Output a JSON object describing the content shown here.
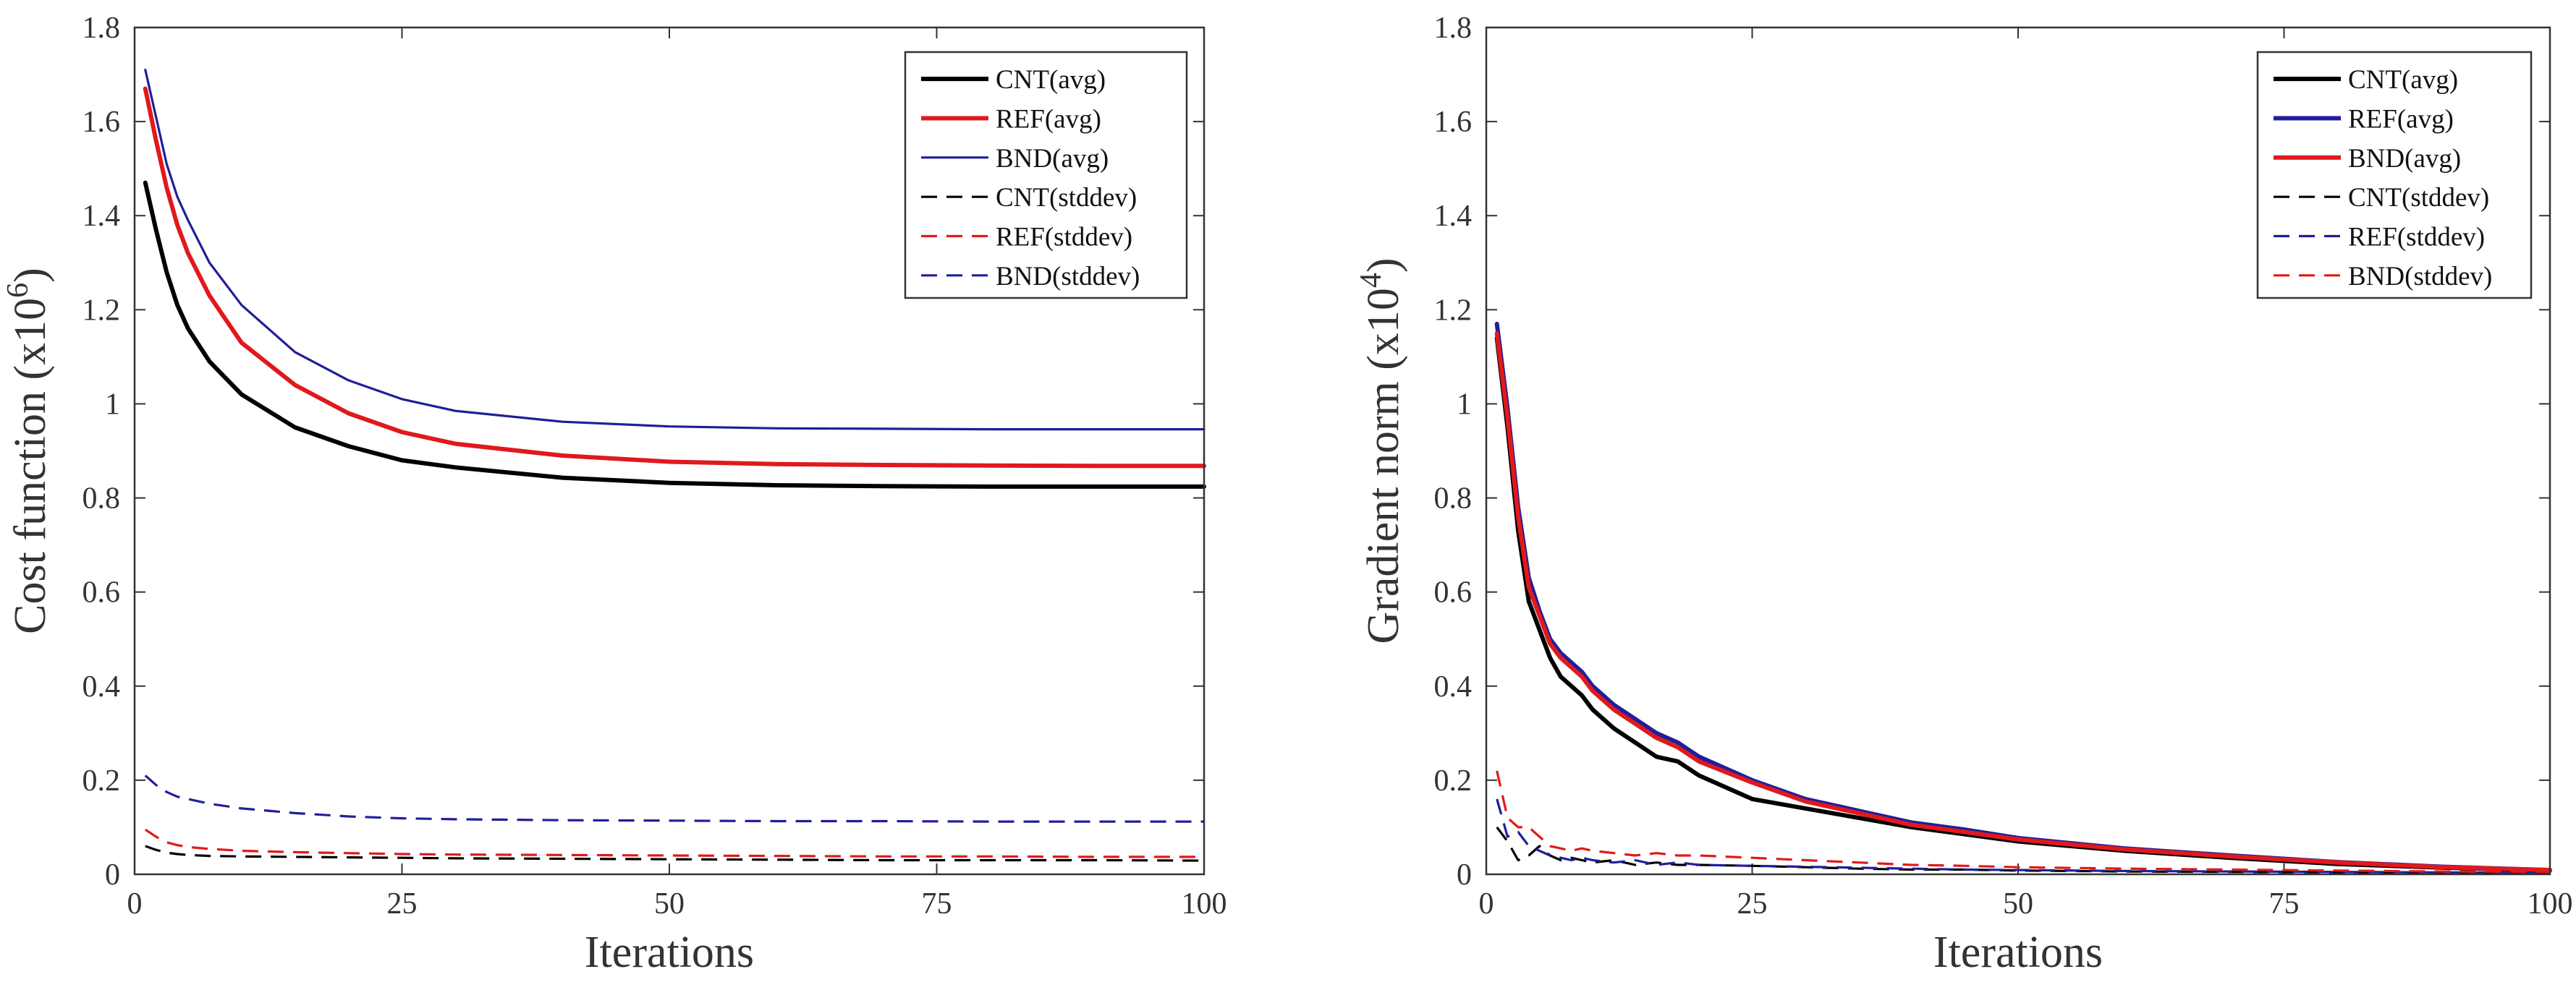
{
  "chart_data": [
    {
      "type": "line",
      "xlabel": "Iterations",
      "ylabel": "Cost function (x10",
      "ylabel_sup": "6",
      "ylabel_close": ")",
      "xlim": [
        0,
        100
      ],
      "ylim": [
        0,
        1.8
      ],
      "xticks": [
        0,
        25,
        50,
        75,
        100
      ],
      "xtick_labels": [
        "0",
        "25",
        "50",
        "75",
        "100"
      ],
      "yticks": [
        0,
        0.2,
        0.4,
        0.6,
        0.8,
        1.0,
        1.2,
        1.4,
        1.6,
        1.8
      ],
      "ytick_labels": [
        "0",
        "0.2",
        "0.4",
        "0.6",
        "0.8",
        "1",
        "1.2",
        "1.4",
        "1.6",
        "1.8"
      ],
      "legend_position": "top-right",
      "x": [
        1,
        2,
        3,
        4,
        5,
        7,
        10,
        15,
        20,
        25,
        30,
        40,
        50,
        60,
        70,
        80,
        90,
        100
      ],
      "series": [
        {
          "name": "CNT(avg)",
          "color": "#000000",
          "style": "solid",
          "weight": "thick",
          "values": [
            1.47,
            1.37,
            1.28,
            1.21,
            1.16,
            1.09,
            1.02,
            0.95,
            0.91,
            0.88,
            0.865,
            0.843,
            0.832,
            0.827,
            0.825,
            0.824,
            0.824,
            0.824
          ]
        },
        {
          "name": "REF(avg)",
          "color": "#e0191d",
          "style": "solid",
          "weight": "thick",
          "values": [
            1.67,
            1.56,
            1.46,
            1.38,
            1.32,
            1.23,
            1.13,
            1.04,
            0.98,
            0.94,
            0.915,
            0.89,
            0.877,
            0.872,
            0.87,
            0.869,
            0.868,
            0.868
          ]
        },
        {
          "name": "BND(avg)",
          "color": "#1f1f9a",
          "style": "solid",
          "weight": "thin",
          "values": [
            1.71,
            1.61,
            1.51,
            1.44,
            1.39,
            1.3,
            1.21,
            1.11,
            1.05,
            1.01,
            0.985,
            0.962,
            0.952,
            0.948,
            0.947,
            0.946,
            0.946,
            0.946
          ]
        },
        {
          "name": "CNT(stddev)",
          "color": "#000000",
          "style": "dashed",
          "weight": "thin",
          "values": [
            0.06,
            0.052,
            0.046,
            0.043,
            0.041,
            0.039,
            0.038,
            0.037,
            0.036,
            0.035,
            0.034,
            0.033,
            0.032,
            0.031,
            0.03,
            0.03,
            0.03,
            0.029
          ]
        },
        {
          "name": "REF(stddev)",
          "color": "#e0191d",
          "style": "dashed",
          "weight": "thin",
          "values": [
            0.095,
            0.08,
            0.068,
            0.062,
            0.058,
            0.054,
            0.05,
            0.047,
            0.045,
            0.043,
            0.042,
            0.041,
            0.04,
            0.039,
            0.038,
            0.038,
            0.037,
            0.037
          ]
        },
        {
          "name": "BND(stddev)",
          "color": "#1f1f9a",
          "style": "dashed",
          "weight": "thin",
          "values": [
            0.21,
            0.19,
            0.175,
            0.165,
            0.16,
            0.15,
            0.14,
            0.13,
            0.123,
            0.119,
            0.117,
            0.115,
            0.114,
            0.113,
            0.113,
            0.112,
            0.112,
            0.112
          ]
        }
      ]
    },
    {
      "type": "line",
      "xlabel": "Iterations",
      "ylabel": "Gradient norm (x10",
      "ylabel_sup": "4",
      "ylabel_close": ")",
      "xlim": [
        0,
        100
      ],
      "ylim": [
        0,
        1.8
      ],
      "xticks": [
        0,
        25,
        50,
        75,
        100
      ],
      "xtick_labels": [
        "0",
        "25",
        "50",
        "75",
        "100"
      ],
      "yticks": [
        0,
        0.2,
        0.4,
        0.6,
        0.8,
        1.0,
        1.2,
        1.4,
        1.6,
        1.8
      ],
      "ytick_labels": [
        "0",
        "0.2",
        "0.4",
        "0.6",
        "0.8",
        "1",
        "1.2",
        "1.4",
        "1.6",
        "1.8"
      ],
      "legend_position": "top-right",
      "x": [
        1,
        2,
        3,
        4,
        5,
        6,
        7,
        8,
        9,
        10,
        12,
        14,
        16,
        18,
        20,
        25,
        30,
        35,
        40,
        45,
        50,
        60,
        70,
        80,
        90,
        100
      ],
      "series": [
        {
          "name": "CNT(avg)",
          "color": "#000000",
          "style": "solid",
          "weight": "thick",
          "values": [
            1.14,
            0.95,
            0.73,
            0.58,
            0.52,
            0.46,
            0.42,
            0.4,
            0.38,
            0.35,
            0.31,
            0.28,
            0.25,
            0.24,
            0.21,
            0.16,
            0.14,
            0.12,
            0.1,
            0.085,
            0.07,
            0.05,
            0.035,
            0.022,
            0.014,
            0.008
          ]
        },
        {
          "name": "REF(avg)",
          "color": "#1f1f9a",
          "style": "solid",
          "weight": "thick",
          "values": [
            1.17,
            0.99,
            0.78,
            0.63,
            0.56,
            0.5,
            0.47,
            0.45,
            0.43,
            0.4,
            0.36,
            0.33,
            0.3,
            0.28,
            0.25,
            0.2,
            0.16,
            0.135,
            0.11,
            0.095,
            0.077,
            0.055,
            0.04,
            0.026,
            0.016,
            0.009
          ]
        },
        {
          "name": "BND(avg)",
          "color": "#e0191d",
          "style": "solid",
          "weight": "thick",
          "values": [
            1.15,
            0.97,
            0.76,
            0.61,
            0.55,
            0.49,
            0.46,
            0.44,
            0.42,
            0.39,
            0.35,
            0.32,
            0.29,
            0.27,
            0.24,
            0.195,
            0.155,
            0.13,
            0.105,
            0.09,
            0.074,
            0.053,
            0.038,
            0.025,
            0.015,
            0.009
          ]
        },
        {
          "name": "CNT(stddev)",
          "color": "#000000",
          "style": "dashed",
          "weight": "thin",
          "values": [
            0.1,
            0.07,
            0.03,
            0.04,
            0.06,
            0.04,
            0.03,
            0.035,
            0.03,
            0.025,
            0.03,
            0.02,
            0.025,
            0.02,
            0.02,
            0.018,
            0.015,
            0.012,
            0.01,
            0.01,
            0.008,
            0.006,
            0.005,
            0.004,
            0.003,
            0.003
          ]
        },
        {
          "name": "REF(stddev)",
          "color": "#1f1f9a",
          "style": "dashed",
          "weight": "thin",
          "values": [
            0.16,
            0.08,
            0.09,
            0.06,
            0.05,
            0.04,
            0.035,
            0.03,
            0.035,
            0.03,
            0.025,
            0.03,
            0.02,
            0.025,
            0.02,
            0.018,
            0.016,
            0.014,
            0.012,
            0.01,
            0.009,
            0.007,
            0.006,
            0.005,
            0.004,
            0.003
          ]
        },
        {
          "name": "BND(stddev)",
          "color": "#e0191d",
          "style": "dashed",
          "weight": "thin",
          "values": [
            0.22,
            0.12,
            0.1,
            0.1,
            0.08,
            0.06,
            0.055,
            0.05,
            0.055,
            0.05,
            0.045,
            0.04,
            0.045,
            0.04,
            0.04,
            0.035,
            0.03,
            0.025,
            0.02,
            0.018,
            0.015,
            0.012,
            0.01,
            0.008,
            0.006,
            0.005
          ]
        }
      ]
    }
  ]
}
